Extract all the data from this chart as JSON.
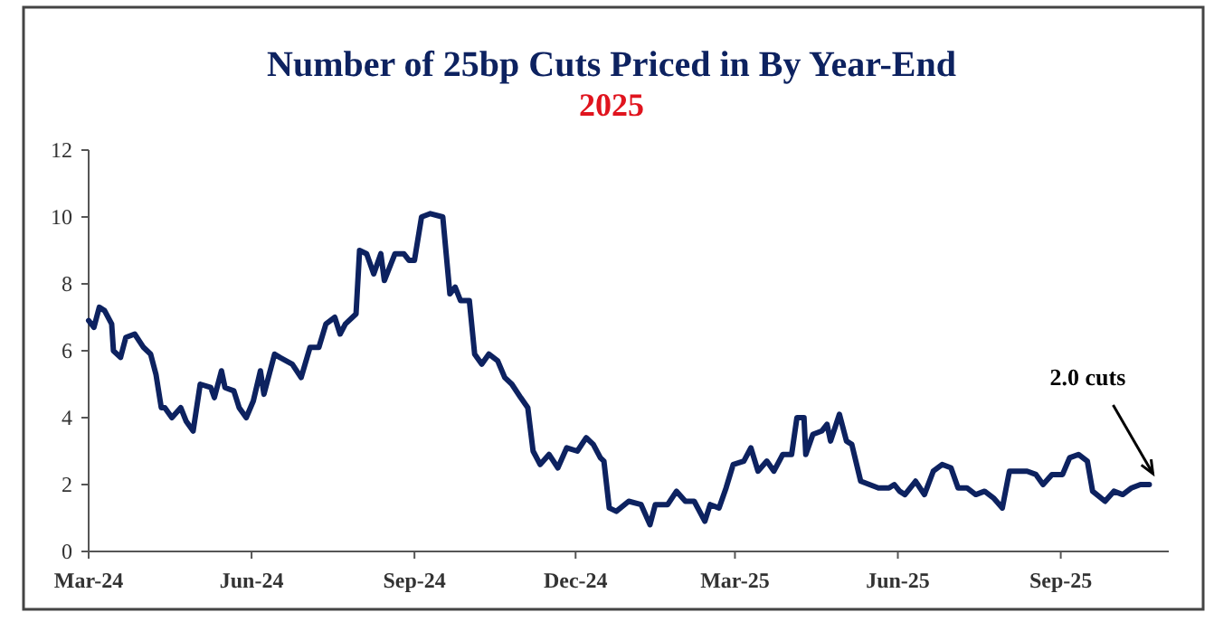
{
  "chart_data": {
    "type": "line",
    "title": "Number of 25bp Cuts Priced in By Year-End",
    "subtitle": "2025",
    "x": [
      "2024-03-01",
      "2024-03-04",
      "2024-03-07",
      "2024-03-10",
      "2024-03-14",
      "2024-03-15",
      "2024-03-19",
      "2024-03-22",
      "2024-03-27",
      "2024-04-01",
      "2024-04-05",
      "2024-04-08",
      "2024-04-11",
      "2024-04-13",
      "2024-04-17",
      "2024-04-22",
      "2024-04-25",
      "2024-04-29",
      "2024-05-03",
      "2024-05-09",
      "2024-05-11",
      "2024-05-15",
      "2024-05-17",
      "2024-05-22",
      "2024-05-25",
      "2024-05-29",
      "2024-06-02",
      "2024-06-06",
      "2024-06-08",
      "2024-06-14",
      "2024-06-17",
      "2024-06-24",
      "2024-06-29",
      "2024-07-04",
      "2024-07-09",
      "2024-07-13",
      "2024-07-18",
      "2024-07-21",
      "2024-07-24",
      "2024-07-30",
      "2024-08-01",
      "2024-08-05",
      "2024-08-09",
      "2024-08-13",
      "2024-08-15",
      "2024-08-21",
      "2024-08-26",
      "2024-08-29",
      "2024-09-01",
      "2024-09-05",
      "2024-09-10",
      "2024-09-17",
      "2024-09-21",
      "2024-09-24",
      "2024-09-27",
      "2024-10-02",
      "2024-10-05",
      "2024-10-09",
      "2024-10-13",
      "2024-10-18",
      "2024-10-22",
      "2024-10-26",
      "2024-10-31",
      "2024-11-04",
      "2024-11-07",
      "2024-11-11",
      "2024-11-16",
      "2024-11-21",
      "2024-11-26",
      "2024-12-02",
      "2024-12-07",
      "2024-12-11",
      "2024-12-15",
      "2024-12-17",
      "2024-12-20",
      "2024-12-24",
      "2024-12-31",
      "2025-01-07",
      "2025-01-12",
      "2025-01-15",
      "2025-01-22",
      "2025-01-27",
      "2025-02-01",
      "2025-02-06",
      "2025-02-12",
      "2025-02-15",
      "2025-02-20",
      "2025-02-24",
      "2025-02-28",
      "2025-03-06",
      "2025-03-10",
      "2025-03-14",
      "2025-03-19",
      "2025-03-23",
      "2025-03-28",
      "2025-04-02",
      "2025-04-05",
      "2025-04-09",
      "2025-04-10",
      "2025-04-14",
      "2025-04-19",
      "2025-04-22",
      "2025-04-24",
      "2025-04-29",
      "2025-05-03",
      "2025-05-06",
      "2025-05-11",
      "2025-05-16",
      "2025-05-21",
      "2025-05-27",
      "2025-05-30",
      "2025-06-02",
      "2025-06-05",
      "2025-06-11",
      "2025-06-16",
      "2025-06-21",
      "2025-06-26",
      "2025-07-01",
      "2025-07-05",
      "2025-07-10",
      "2025-07-15",
      "2025-07-20",
      "2025-07-25",
      "2025-07-30",
      "2025-08-03",
      "2025-08-08",
      "2025-08-13",
      "2025-08-18",
      "2025-08-22",
      "2025-08-27",
      "2025-09-02",
      "2025-09-06",
      "2025-09-11",
      "2025-09-16",
      "2025-09-19",
      "2025-09-26",
      "2025-10-01",
      "2025-10-06",
      "2025-10-11",
      "2025-10-16",
      "2025-10-21"
    ],
    "series": [
      {
        "color": "#0d2260",
        "values": [
          6.9,
          6.7,
          7.3,
          7.2,
          6.8,
          6.0,
          5.8,
          6.4,
          6.5,
          6.1,
          5.9,
          5.3,
          4.3,
          4.3,
          4.0,
          4.3,
          3.9,
          3.6,
          5.0,
          4.9,
          4.6,
          5.4,
          4.9,
          4.8,
          4.3,
          4.0,
          4.5,
          5.4,
          4.7,
          5.9,
          5.8,
          5.6,
          5.2,
          6.1,
          6.1,
          6.8,
          7.0,
          6.5,
          6.8,
          7.1,
          9.0,
          8.9,
          8.3,
          8.9,
          8.1,
          8.9,
          8.9,
          8.7,
          8.7,
          10.0,
          10.1,
          10.0,
          7.7,
          7.9,
          7.5,
          7.5,
          5.9,
          5.6,
          5.9,
          5.7,
          5.2,
          5.0,
          4.6,
          4.3,
          3.0,
          2.6,
          2.9,
          2.5,
          3.1,
          3.0,
          3.4,
          3.2,
          2.8,
          2.7,
          1.3,
          1.2,
          1.5,
          1.4,
          0.8,
          1.4,
          1.4,
          1.8,
          1.5,
          1.5,
          0.9,
          1.4,
          1.3,
          1.9,
          2.6,
          2.7,
          3.1,
          2.4,
          2.7,
          2.4,
          2.9,
          2.9,
          4.0,
          4.0,
          2.9,
          3.5,
          3.6,
          3.8,
          3.3,
          4.1,
          3.3,
          3.2,
          2.1,
          2.0,
          1.9,
          1.9,
          2.0,
          1.8,
          1.7,
          2.1,
          1.7,
          2.4,
          2.6,
          2.5,
          1.9,
          1.9,
          1.7,
          1.8,
          1.6,
          1.3,
          2.4,
          2.4,
          2.4,
          2.3,
          2.0,
          2.3,
          2.3,
          2.8,
          2.9,
          2.7,
          1.8,
          1.5,
          1.8,
          1.7,
          1.9,
          2.0,
          2.0
        ]
      }
    ],
    "xlim": [
      "2024-03-01",
      "2025-11-01"
    ],
    "xticks": [
      {
        "value": "2024-03-01",
        "label": "Mar-24"
      },
      {
        "value": "2024-06-01",
        "label": "Jun-24"
      },
      {
        "value": "2024-09-01",
        "label": "Sep-24"
      },
      {
        "value": "2024-12-01",
        "label": "Dec-24"
      },
      {
        "value": "2025-03-01",
        "label": "Mar-25"
      },
      {
        "value": "2025-06-01",
        "label": "Jun-25"
      },
      {
        "value": "2025-09-01",
        "label": "Sep-25"
      }
    ],
    "ylim": [
      0,
      12
    ],
    "yticks": [
      0,
      2,
      4,
      6,
      8,
      10,
      12
    ],
    "annotations": [
      {
        "text": "2.0 cuts",
        "x": "2025-10-21",
        "y": 2.0
      }
    ]
  }
}
